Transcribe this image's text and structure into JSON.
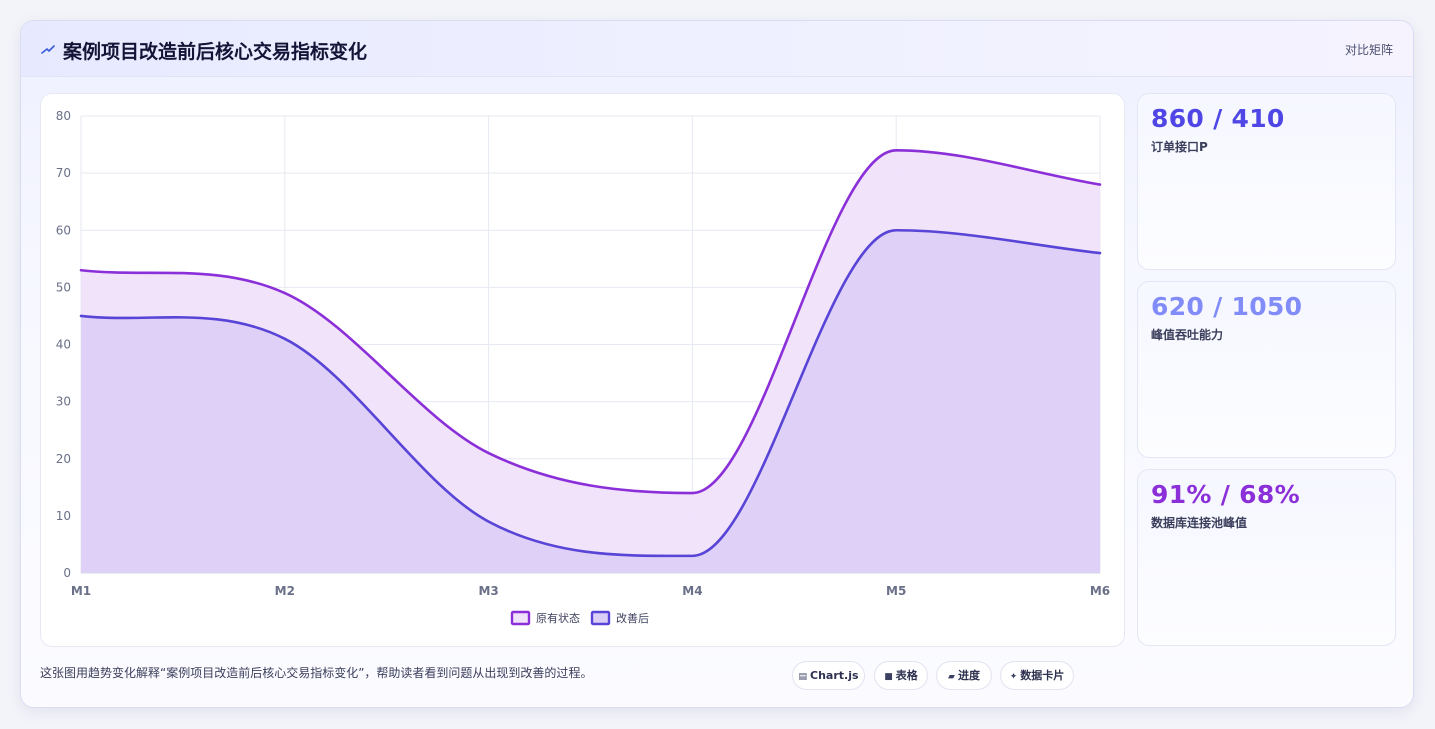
{
  "header": {
    "title": "案例项目改造前后核心交易指标变化",
    "action_label": "对比矩阵",
    "icon": "chart-zigzag-icon"
  },
  "stats": [
    {
      "value": "860 / 410",
      "label": "订单接口P",
      "color": "#4f46e5"
    },
    {
      "value": "620 / 1050",
      "label": "峰值吞吐能力",
      "color": "#818cf8"
    },
    {
      "value": "91% / 68%",
      "label": "数据库连接池峰值",
      "color": "#8b2fd9"
    }
  ],
  "footer": {
    "description": "这张图用趋势变化解释“案例项目改造前后核心交易指标变化”，帮助读者看到问题从出现到改善的过程。",
    "tags": [
      {
        "icon": "▤",
        "label": "Chart.js"
      },
      {
        "icon": "■",
        "label": "表格"
      },
      {
        "icon": "▰",
        "label": "进度"
      },
      {
        "icon": "✦",
        "label": "数据卡片"
      }
    ]
  },
  "chart_data": {
    "type": "area",
    "categories": [
      "M1",
      "M2",
      "M3",
      "M4",
      "M5",
      "M6"
    ],
    "ylim": [
      0,
      80
    ],
    "yticks": [
      0,
      10,
      20,
      30,
      40,
      50,
      60,
      70,
      80
    ],
    "grid": true,
    "legend_position": "bottom",
    "series": [
      {
        "name": "原有状态",
        "values": [
          53,
          49,
          21,
          14,
          74,
          68
        ],
        "color": "#8b2fd9",
        "fill": "#efe2fa"
      },
      {
        "name": "改善后",
        "values": [
          45,
          41,
          9,
          3,
          60,
          56
        ],
        "color": "#5844d6",
        "fill": "#dccff7"
      }
    ]
  }
}
